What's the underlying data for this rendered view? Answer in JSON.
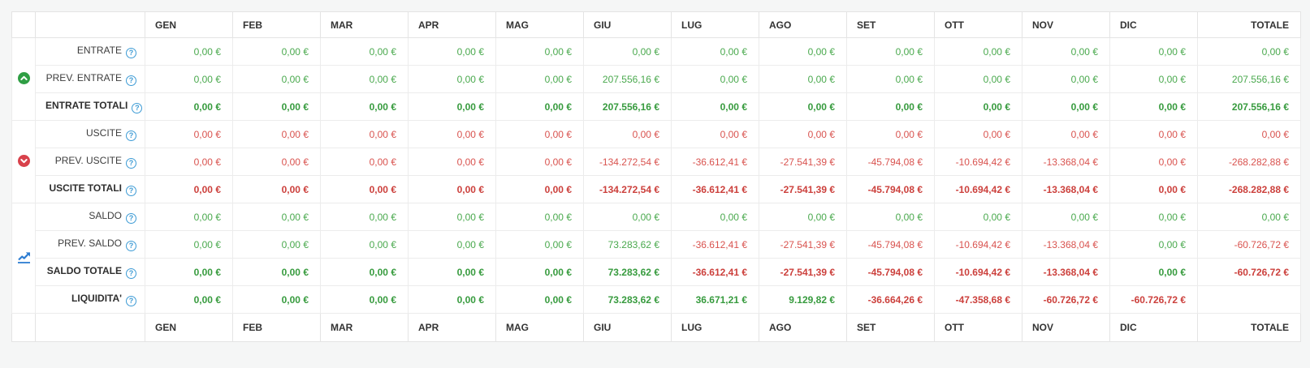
{
  "colors": {
    "positive": "#43a047",
    "negative": "#d9534f",
    "income_icon": "#2f9e44",
    "expense_icon": "#d8414b",
    "chart_icon": "#2d7dd2",
    "help_icon": "#3d9bd5"
  },
  "help_icon_glyph": "?",
  "columns": [
    "GEN",
    "FEB",
    "MAR",
    "APR",
    "MAG",
    "GIU",
    "LUG",
    "AGO",
    "SET",
    "OTT",
    "NOV",
    "DIC",
    "TOTALE"
  ],
  "groups": [
    {
      "name": "entrate",
      "icon": "circle-chevron-up-icon",
      "rows": [
        {
          "label": "ENTRATE",
          "bold": false,
          "cells": [
            {
              "t": "0,00 €",
              "k": "g"
            },
            {
              "t": "0,00 €",
              "k": "g"
            },
            {
              "t": "0,00 €",
              "k": "g"
            },
            {
              "t": "0,00 €",
              "k": "g"
            },
            {
              "t": "0,00 €",
              "k": "g"
            },
            {
              "t": "0,00 €",
              "k": "g"
            },
            {
              "t": "0,00 €",
              "k": "g"
            },
            {
              "t": "0,00 €",
              "k": "g"
            },
            {
              "t": "0,00 €",
              "k": "g"
            },
            {
              "t": "0,00 €",
              "k": "g"
            },
            {
              "t": "0,00 €",
              "k": "g"
            },
            {
              "t": "0,00 €",
              "k": "g"
            },
            {
              "t": "0,00 €",
              "k": "g"
            }
          ]
        },
        {
          "label": "PREV. ENTRATE",
          "bold": false,
          "cells": [
            {
              "t": "0,00 €",
              "k": "g"
            },
            {
              "t": "0,00 €",
              "k": "g"
            },
            {
              "t": "0,00 €",
              "k": "g"
            },
            {
              "t": "0,00 €",
              "k": "g"
            },
            {
              "t": "0,00 €",
              "k": "g"
            },
            {
              "t": "207.556,16 €",
              "k": "g"
            },
            {
              "t": "0,00 €",
              "k": "g"
            },
            {
              "t": "0,00 €",
              "k": "g"
            },
            {
              "t": "0,00 €",
              "k": "g"
            },
            {
              "t": "0,00 €",
              "k": "g"
            },
            {
              "t": "0,00 €",
              "k": "g"
            },
            {
              "t": "0,00 €",
              "k": "g"
            },
            {
              "t": "207.556,16 €",
              "k": "g"
            }
          ]
        },
        {
          "label": "ENTRATE TOTALI",
          "bold": true,
          "cells": [
            {
              "t": "0,00 €",
              "k": "g"
            },
            {
              "t": "0,00 €",
              "k": "g"
            },
            {
              "t": "0,00 €",
              "k": "g"
            },
            {
              "t": "0,00 €",
              "k": "g"
            },
            {
              "t": "0,00 €",
              "k": "g"
            },
            {
              "t": "207.556,16 €",
              "k": "g"
            },
            {
              "t": "0,00 €",
              "k": "g"
            },
            {
              "t": "0,00 €",
              "k": "g"
            },
            {
              "t": "0,00 €",
              "k": "g"
            },
            {
              "t": "0,00 €",
              "k": "g"
            },
            {
              "t": "0,00 €",
              "k": "g"
            },
            {
              "t": "0,00 €",
              "k": "g"
            },
            {
              "t": "207.556,16 €",
              "k": "g"
            }
          ]
        }
      ]
    },
    {
      "name": "uscite",
      "icon": "circle-chevron-down-icon",
      "rows": [
        {
          "label": "USCITE",
          "bold": false,
          "cells": [
            {
              "t": "0,00 €",
              "k": "r"
            },
            {
              "t": "0,00 €",
              "k": "r"
            },
            {
              "t": "0,00 €",
              "k": "r"
            },
            {
              "t": "0,00 €",
              "k": "r"
            },
            {
              "t": "0,00 €",
              "k": "r"
            },
            {
              "t": "0,00 €",
              "k": "r"
            },
            {
              "t": "0,00 €",
              "k": "r"
            },
            {
              "t": "0,00 €",
              "k": "r"
            },
            {
              "t": "0,00 €",
              "k": "r"
            },
            {
              "t": "0,00 €",
              "k": "r"
            },
            {
              "t": "0,00 €",
              "k": "r"
            },
            {
              "t": "0,00 €",
              "k": "r"
            },
            {
              "t": "0,00 €",
              "k": "r"
            }
          ]
        },
        {
          "label": "PREV. USCITE",
          "bold": false,
          "cells": [
            {
              "t": "0,00 €",
              "k": "r"
            },
            {
              "t": "0,00 €",
              "k": "r"
            },
            {
              "t": "0,00 €",
              "k": "r"
            },
            {
              "t": "0,00 €",
              "k": "r"
            },
            {
              "t": "0,00 €",
              "k": "r"
            },
            {
              "t": "-134.272,54 €",
              "k": "r"
            },
            {
              "t": "-36.612,41 €",
              "k": "r"
            },
            {
              "t": "-27.541,39 €",
              "k": "r"
            },
            {
              "t": "-45.794,08 €",
              "k": "r"
            },
            {
              "t": "-10.694,42 €",
              "k": "r"
            },
            {
              "t": "-13.368,04 €",
              "k": "r"
            },
            {
              "t": "0,00 €",
              "k": "r"
            },
            {
              "t": "-268.282,88 €",
              "k": "r"
            }
          ]
        },
        {
          "label": "USCITE TOTALI",
          "bold": true,
          "cells": [
            {
              "t": "0,00 €",
              "k": "r"
            },
            {
              "t": "0,00 €",
              "k": "r"
            },
            {
              "t": "0,00 €",
              "k": "r"
            },
            {
              "t": "0,00 €",
              "k": "r"
            },
            {
              "t": "0,00 €",
              "k": "r"
            },
            {
              "t": "-134.272,54 €",
              "k": "r"
            },
            {
              "t": "-36.612,41 €",
              "k": "r"
            },
            {
              "t": "-27.541,39 €",
              "k": "r"
            },
            {
              "t": "-45.794,08 €",
              "k": "r"
            },
            {
              "t": "-10.694,42 €",
              "k": "r"
            },
            {
              "t": "-13.368,04 €",
              "k": "r"
            },
            {
              "t": "0,00 €",
              "k": "r"
            },
            {
              "t": "-268.282,88 €",
              "k": "r"
            }
          ]
        }
      ]
    },
    {
      "name": "saldo",
      "icon": "line-chart-icon",
      "rows": [
        {
          "label": "SALDO",
          "bold": false,
          "cells": [
            {
              "t": "0,00 €",
              "k": "g"
            },
            {
              "t": "0,00 €",
              "k": "g"
            },
            {
              "t": "0,00 €",
              "k": "g"
            },
            {
              "t": "0,00 €",
              "k": "g"
            },
            {
              "t": "0,00 €",
              "k": "g"
            },
            {
              "t": "0,00 €",
              "k": "g"
            },
            {
              "t": "0,00 €",
              "k": "g"
            },
            {
              "t": "0,00 €",
              "k": "g"
            },
            {
              "t": "0,00 €",
              "k": "g"
            },
            {
              "t": "0,00 €",
              "k": "g"
            },
            {
              "t": "0,00 €",
              "k": "g"
            },
            {
              "t": "0,00 €",
              "k": "g"
            },
            {
              "t": "0,00 €",
              "k": "g"
            }
          ]
        },
        {
          "label": "PREV. SALDO",
          "bold": false,
          "cells": [
            {
              "t": "0,00 €",
              "k": "g"
            },
            {
              "t": "0,00 €",
              "k": "g"
            },
            {
              "t": "0,00 €",
              "k": "g"
            },
            {
              "t": "0,00 €",
              "k": "g"
            },
            {
              "t": "0,00 €",
              "k": "g"
            },
            {
              "t": "73.283,62 €",
              "k": "g"
            },
            {
              "t": "-36.612,41 €",
              "k": "r"
            },
            {
              "t": "-27.541,39 €",
              "k": "r"
            },
            {
              "t": "-45.794,08 €",
              "k": "r"
            },
            {
              "t": "-10.694,42 €",
              "k": "r"
            },
            {
              "t": "-13.368,04 €",
              "k": "r"
            },
            {
              "t": "0,00 €",
              "k": "g"
            },
            {
              "t": "-60.726,72 €",
              "k": "r"
            }
          ]
        },
        {
          "label": "SALDO TOTALE",
          "bold": true,
          "cells": [
            {
              "t": "0,00 €",
              "k": "g"
            },
            {
              "t": "0,00 €",
              "k": "g"
            },
            {
              "t": "0,00 €",
              "k": "g"
            },
            {
              "t": "0,00 €",
              "k": "g"
            },
            {
              "t": "0,00 €",
              "k": "g"
            },
            {
              "t": "73.283,62 €",
              "k": "g"
            },
            {
              "t": "-36.612,41 €",
              "k": "r"
            },
            {
              "t": "-27.541,39 €",
              "k": "r"
            },
            {
              "t": "-45.794,08 €",
              "k": "r"
            },
            {
              "t": "-10.694,42 €",
              "k": "r"
            },
            {
              "t": "-13.368,04 €",
              "k": "r"
            },
            {
              "t": "0,00 €",
              "k": "g"
            },
            {
              "t": "-60.726,72 €",
              "k": "r"
            }
          ]
        },
        {
          "label": "LIQUIDITA'",
          "bold": true,
          "cells": [
            {
              "t": "0,00 €",
              "k": "g"
            },
            {
              "t": "0,00 €",
              "k": "g"
            },
            {
              "t": "0,00 €",
              "k": "g"
            },
            {
              "t": "0,00 €",
              "k": "g"
            },
            {
              "t": "0,00 €",
              "k": "g"
            },
            {
              "t": "73.283,62 €",
              "k": "g"
            },
            {
              "t": "36.671,21 €",
              "k": "g"
            },
            {
              "t": "9.129,82 €",
              "k": "g"
            },
            {
              "t": "-36.664,26 €",
              "k": "r"
            },
            {
              "t": "-47.358,68 €",
              "k": "r"
            },
            {
              "t": "-60.726,72 €",
              "k": "r"
            },
            {
              "t": "-60.726,72 €",
              "k": "r"
            },
            {
              "t": "",
              "k": ""
            }
          ]
        }
      ]
    }
  ]
}
